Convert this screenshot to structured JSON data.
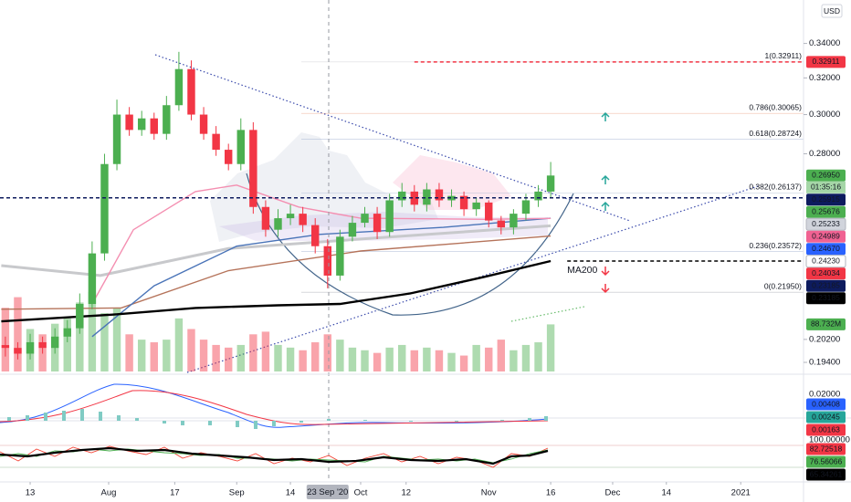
{
  "header": {
    "currency": "USD"
  },
  "chart_data": {
    "type": "candlestick",
    "x": [
      -6,
      -3,
      0,
      3,
      6,
      9,
      12,
      15,
      18,
      21,
      24,
      27,
      30,
      33,
      36,
      39,
      42,
      45,
      48,
      51,
      54,
      57,
      60,
      63,
      66,
      69,
      72,
      75,
      78,
      81,
      84,
      87,
      90,
      93,
      96,
      99,
      102,
      105,
      108,
      111,
      114,
      117,
      120,
      123,
      126
    ],
    "open": [
      0.2,
      0.199,
      0.197,
      0.201,
      0.199,
      0.203,
      0.206,
      0.215,
      0.235,
      0.275,
      0.3,
      0.292,
      0.298,
      0.29,
      0.305,
      0.325,
      0.3,
      0.29,
      0.282,
      0.275,
      0.292,
      0.255,
      0.245,
      0.25,
      0.252,
      0.247,
      0.238,
      0.226,
      0.242,
      0.248,
      0.252,
      0.244,
      0.258,
      0.262,
      0.256,
      0.263,
      0.258,
      0.26,
      0.254,
      0.257,
      0.249,
      0.246,
      0.252,
      0.258,
      0.262
    ],
    "high": [
      0.203,
      0.201,
      0.204,
      0.203,
      0.206,
      0.209,
      0.219,
      0.24,
      0.28,
      0.308,
      0.304,
      0.302,
      0.301,
      0.31,
      0.335,
      0.33,
      0.304,
      0.294,
      0.285,
      0.298,
      0.296,
      0.258,
      0.254,
      0.256,
      0.255,
      0.25,
      0.241,
      0.245,
      0.251,
      0.255,
      0.255,
      0.261,
      0.266,
      0.265,
      0.266,
      0.266,
      0.263,
      0.262,
      0.259,
      0.258,
      0.251,
      0.254,
      0.261,
      0.265,
      0.276
    ],
    "low": [
      0.196,
      0.195,
      0.195,
      0.197,
      0.197,
      0.201,
      0.204,
      0.213,
      0.232,
      0.272,
      0.289,
      0.289,
      0.287,
      0.287,
      0.302,
      0.297,
      0.287,
      0.279,
      0.272,
      0.272,
      0.252,
      0.242,
      0.242,
      0.247,
      0.244,
      0.235,
      0.221,
      0.224,
      0.24,
      0.246,
      0.241,
      0.242,
      0.255,
      0.253,
      0.253,
      0.255,
      0.255,
      0.251,
      0.251,
      0.246,
      0.243,
      0.243,
      0.249,
      0.255,
      0.259
    ],
    "close": [
      0.199,
      0.197,
      0.201,
      0.199,
      0.203,
      0.206,
      0.215,
      0.235,
      0.275,
      0.3,
      0.292,
      0.298,
      0.29,
      0.305,
      0.325,
      0.3,
      0.29,
      0.282,
      0.275,
      0.292,
      0.255,
      0.245,
      0.25,
      0.252,
      0.247,
      0.238,
      0.226,
      0.242,
      0.248,
      0.252,
      0.244,
      0.258,
      0.262,
      0.256,
      0.263,
      0.258,
      0.26,
      0.254,
      0.257,
      0.249,
      0.246,
      0.252,
      0.258,
      0.262,
      0.2695
    ],
    "up_color": "#4caf50",
    "down_color": "#f23645",
    "log_scale": true,
    "xlim": [
      -7.3,
      187.2
    ],
    "xticks": [
      {
        "value": 0,
        "label": "13"
      },
      {
        "value": 19,
        "label": "Aug"
      },
      {
        "value": 35,
        "label": "17"
      },
      {
        "value": 50,
        "label": "Sep"
      },
      {
        "value": 63,
        "label": "14"
      },
      {
        "value": 80,
        "label": "Oct"
      },
      {
        "value": 91,
        "label": "12"
      },
      {
        "value": 111,
        "label": "Nov"
      },
      {
        "value": 126,
        "label": "16"
      },
      {
        "value": 141,
        "label": "Dec"
      },
      {
        "value": 154,
        "label": "14"
      },
      {
        "value": 172,
        "label": "2021"
      }
    ],
    "crosshair": {
      "value": 72,
      "label": "23 Sep '20"
    },
    "ylim": [
      0.19,
      0.367
    ],
    "yticks": [
      {
        "value": 0.194,
        "label": "0.19400"
      },
      {
        "value": 0.202,
        "label": "0.20200"
      },
      {
        "value": 0.28,
        "label": "0.28000"
      },
      {
        "value": 0.3,
        "label": "0.30000"
      },
      {
        "value": 0.32,
        "label": "0.32000"
      },
      {
        "value": 0.34,
        "label": "0.34000"
      }
    ],
    "volume": {
      "values": [
        120,
        140,
        80,
        70,
        90,
        100,
        130,
        150,
        110,
        120,
        70,
        60,
        55,
        60,
        100,
        80,
        60,
        50,
        45,
        50,
        70,
        75,
        50,
        45,
        40,
        55,
        70,
        60,
        45,
        40,
        35,
        45,
        50,
        40,
        45,
        40,
        35,
        30,
        50,
        45,
        60,
        40,
        50,
        55,
        88.732
      ],
      "lim": [
        0,
        700
      ],
      "tag": {
        "value": 88.732,
        "label": "88.732M",
        "color": "#4caf50"
      }
    },
    "moving_averages": [
      {
        "color": "#c8c9cc",
        "x": [
          -7,
          17,
          48,
          80,
          126
        ],
        "values": [
          0.23,
          0.226,
          0.237,
          0.241,
          0.2467
        ]
      },
      {
        "color": "#b5735a",
        "x": [
          -7,
          22,
          48,
          80,
          126
        ],
        "values": [
          0.213,
          0.2135,
          0.228,
          0.236,
          0.2423
        ]
      },
      {
        "color": "#4a74b8",
        "x": [
          15,
          30,
          50,
          70,
          100,
          126
        ],
        "values": [
          0.203,
          0.222,
          0.238,
          0.243,
          0.246,
          0.25
        ]
      },
      {
        "color": "#f48fb1",
        "x": [
          15,
          25,
          40,
          50,
          65,
          80,
          110,
          126
        ],
        "values": [
          0.215,
          0.245,
          0.262,
          0.265,
          0.255,
          0.25,
          0.2495,
          0.2499
        ]
      },
      {
        "name": "MA200",
        "color": "#000000",
        "x": [
          -7,
          20,
          40,
          60,
          75,
          92,
          110,
          126
        ],
        "values": [
          0.2085,
          0.211,
          0.2135,
          0.2145,
          0.215,
          0.219,
          0.2255,
          0.23185
        ]
      }
    ],
    "fib_levels": [
      {
        "value": 0.32911,
        "label": "1(0.32911)",
        "color": "#b2b5be"
      },
      {
        "value": 0.30065,
        "label": "0.786(0.30065)",
        "color": "#e9967a"
      },
      {
        "value": 0.28724,
        "label": "0.618(0.28724)",
        "color": "#90a4c8"
      },
      {
        "value": 0.26137,
        "label": "0.382(0.26137)",
        "color": "#90a4c8"
      },
      {
        "value": 0.23572,
        "label": "0.236(0.23572)",
        "color": "#90a4c8"
      },
      {
        "value": 0.2195,
        "label": "0(0.21950)",
        "color": "#787b86"
      }
    ],
    "dashed_levels": [
      {
        "value": 0.32911,
        "color": "#f23645",
        "start": 93
      },
      {
        "value": 0.25915,
        "color": "#0d1b5e",
        "start": -7.3
      },
      {
        "value": 0.23185,
        "color": "#000000",
        "start": 130
      }
    ],
    "countdown": "01:35:16",
    "price_tags": [
      {
        "value": 0.32911,
        "label": "0.32911",
        "color": "#f23645"
      },
      {
        "value": 0.2695,
        "label": "0.26950",
        "color": "#4caf50"
      },
      {
        "value": 0.25915,
        "label": "0.25915",
        "color": "#0d1b5e"
      },
      {
        "value": 0.25676,
        "label": "0.25676",
        "color": "#4caf50"
      },
      {
        "value": 0.25233,
        "label": "0.25233",
        "color": "#d1d4dc"
      },
      {
        "value": 0.24989,
        "label": "0.24989",
        "color": "#f06292"
      },
      {
        "value": 0.2467,
        "label": "0.24670",
        "color": "#2962ff"
      },
      {
        "value": 0.2423,
        "label": "0.24230",
        "color": "#ffffff"
      },
      {
        "value": 0.24034,
        "label": "0.24034",
        "color": "#f23645"
      },
      {
        "value": 0.23185,
        "label": "0.23185",
        "color": "#0d1b5e"
      },
      {
        "value": 0.23185,
        "label": "0.23185",
        "color": "#000000"
      }
    ],
    "macd": {
      "axis_label": "0.02000",
      "tags": [
        {
          "value": 0.00408,
          "label": "0.00408",
          "color": "#2962ff"
        },
        {
          "value": 0.00245,
          "label": "0.00245",
          "color": "#26a69a"
        },
        {
          "value": 0.00163,
          "label": "0.00163",
          "color": "#f23645"
        }
      ]
    },
    "stoch": {
      "axis_label": "100.00000",
      "tags": [
        {
          "value": 82.72518,
          "label": "82.72518",
          "color": "#f23645"
        },
        {
          "value": 76.56066,
          "label": "76.56066",
          "color": "#4caf50"
        },
        {
          "value": 65.34261,
          "label": "65.34261",
          "color": "#000000"
        }
      ]
    }
  }
}
